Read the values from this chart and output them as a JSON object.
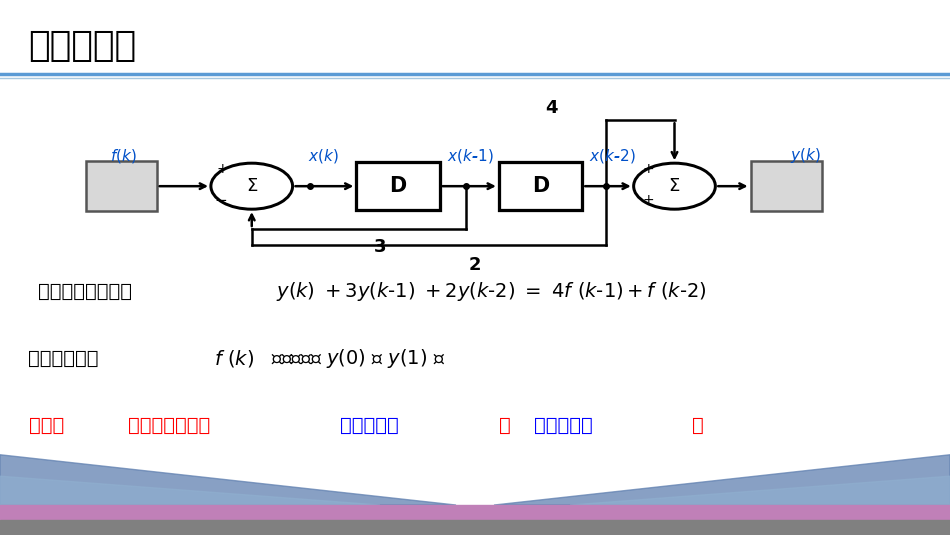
{
  "title": "复习回顾：",
  "title_color": "#000000",
  "title_fontsize": 26,
  "bg_color": "#ffffff",
  "signal_blue": "#0050c8",
  "blue_color": "#0000ff",
  "red_color": "#ff0000",
  "text_line1_prefix": "求解常微分方程：",
  "text_line2_prefix": "需要已知激励  ",
  "text_line3_red1": "问题：",
  "text_line3_red2": "如何求解系统的",
  "text_line3_blue1": "零输入响应",
  "text_line3_red3": "和",
  "text_line3_blue2": "零状态响应",
  "text_line3_red4": "？"
}
